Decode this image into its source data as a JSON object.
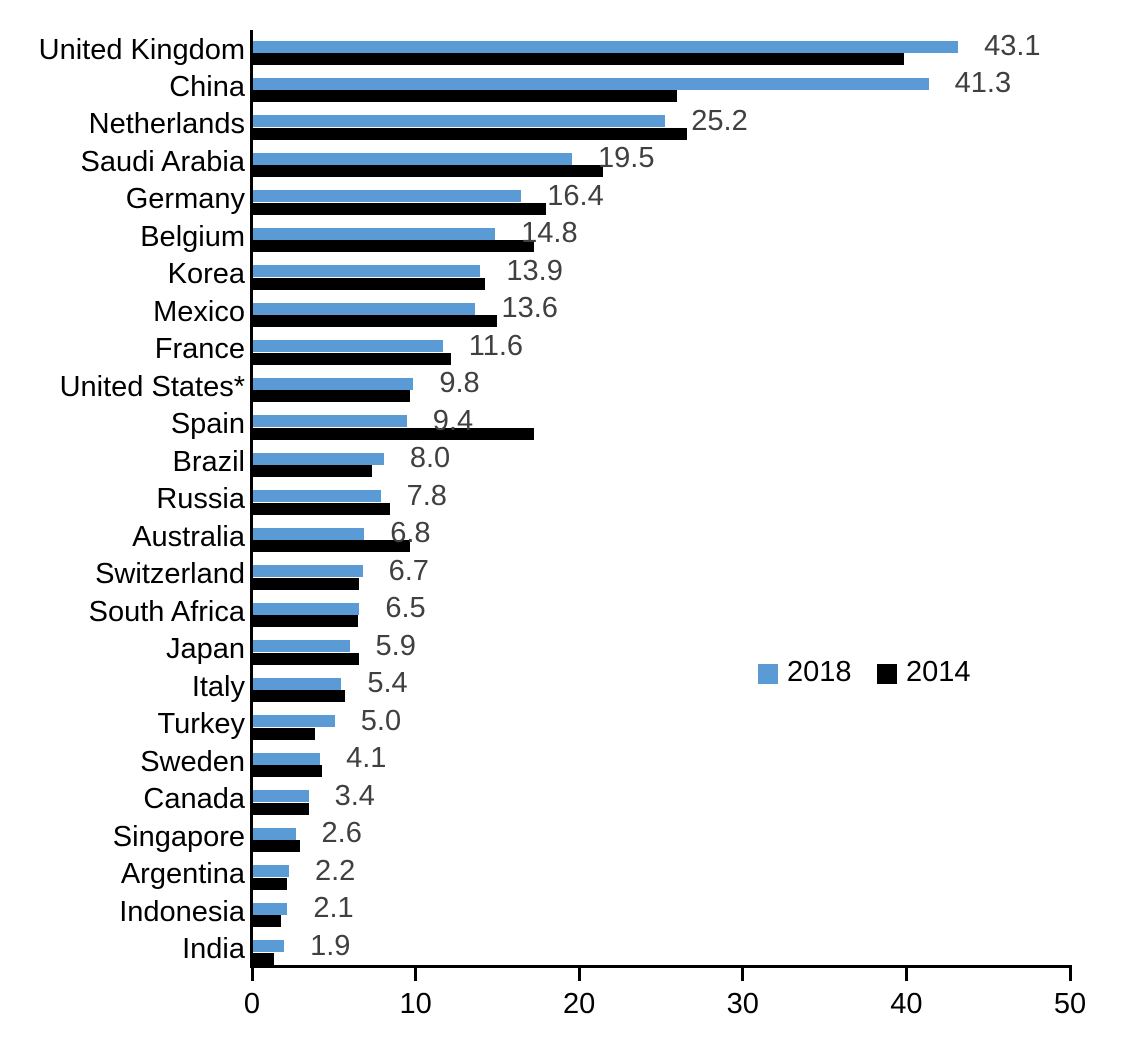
{
  "chart_data": {
    "type": "bar",
    "orientation": "horizontal",
    "title": "",
    "xlabel": "",
    "ylabel": "",
    "grid": false,
    "xlim": [
      0,
      50
    ],
    "xticks": [
      "0",
      "10",
      "20",
      "30",
      "40",
      "50"
    ],
    "categories": [
      "United Kingdom",
      "China",
      "Netherlands",
      "Saudi Arabia",
      "Germany",
      "Belgium",
      "Korea",
      "Mexico",
      "France",
      "United States*",
      "Spain",
      "Brazil",
      "Russia",
      "Australia",
      "Switzerland",
      "South Africa",
      "Japan",
      "Italy",
      "Turkey",
      "Sweden",
      "Canada",
      "Singapore",
      "Argentina",
      "Indonesia",
      "India"
    ],
    "series": [
      {
        "name": "2018",
        "color": "#5B9BD5",
        "values": [
          43.1,
          41.3,
          25.2,
          19.5,
          16.4,
          14.8,
          13.9,
          13.6,
          11.6,
          9.8,
          9.4,
          8.0,
          7.8,
          6.8,
          6.7,
          6.5,
          5.9,
          5.4,
          5.0,
          4.1,
          3.4,
          2.6,
          2.2,
          2.1,
          1.9
        ]
      },
      {
        "name": "2014",
        "color": "#000000",
        "values": [
          39.8,
          25.9,
          26.5,
          21.4,
          17.9,
          17.2,
          14.2,
          14.9,
          12.1,
          9.6,
          17.2,
          7.3,
          8.4,
          9.6,
          6.5,
          6.4,
          6.5,
          5.6,
          3.8,
          4.2,
          3.4,
          2.9,
          2.1,
          1.7,
          1.3
        ]
      }
    ],
    "value_labels": [
      "43.1",
      "41.3",
      "25.2",
      "19.5",
      "16.4",
      "14.8",
      "13.9",
      "13.6",
      "11.6",
      "9.8",
      "9.4",
      "8.0",
      "7.8",
      "6.8",
      "6.7",
      "6.5",
      "5.9",
      "5.4",
      "5.0",
      "4.1",
      "3.4",
      "2.6",
      "2.2",
      "2.1",
      "1.9"
    ],
    "value_label_color": "#404040",
    "axis_color": "#000000",
    "legend": {
      "position": "middle-right",
      "entries": [
        {
          "label": "2018",
          "color": "#5B9BD5"
        },
        {
          "label": "2014",
          "color": "#000000"
        }
      ]
    }
  }
}
